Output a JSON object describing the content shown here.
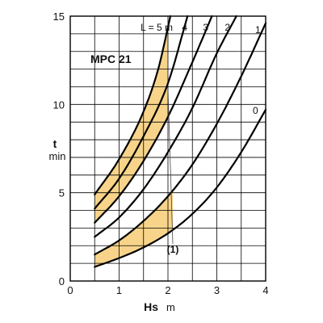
{
  "chart_data": {
    "type": "line",
    "title": "MPC 21",
    "xlabel": "Hs",
    "xunit": "m",
    "ylabel": "t",
    "yunit": "min",
    "xlim": [
      0,
      4
    ],
    "ylim": [
      0,
      15
    ],
    "xticks": [
      "0",
      "1",
      "2",
      "3",
      "4"
    ],
    "yticks": [
      "0",
      "5",
      "10",
      "15"
    ],
    "grid": true,
    "curve_label_prefix": "L = ",
    "curve_label_unit": "m",
    "annotation": "(1)",
    "series": [
      {
        "name": "0",
        "x": [
          0.5,
          1,
          1.5,
          2,
          2.5,
          3,
          3.5,
          4
        ],
        "y": [
          0.8,
          1.3,
          1.9,
          2.7,
          3.8,
          5.3,
          7.3,
          9.7
        ]
      },
      {
        "name": "1",
        "x": [
          0.5,
          1,
          1.5,
          2,
          2.5,
          3,
          3.5,
          4
        ],
        "y": [
          1.5,
          2.3,
          3.4,
          4.8,
          6.6,
          8.9,
          11.6,
          14.6
        ]
      },
      {
        "name": "2",
        "x": [
          0.5,
          1,
          1.5,
          2,
          2.5,
          3,
          3.4
        ],
        "y": [
          2.5,
          3.6,
          5.2,
          7.3,
          9.8,
          12.9,
          15.0
        ]
      },
      {
        "name": "3",
        "x": [
          0.5,
          1,
          1.5,
          2,
          2.5,
          2.9
        ],
        "y": [
          3.3,
          4.8,
          6.8,
          9.3,
          12.4,
          15.0
        ]
      },
      {
        "name": "4",
        "x": [
          0.5,
          1,
          1.5,
          2,
          2.4
        ],
        "y": [
          4.1,
          5.8,
          8.2,
          11.2,
          15.0
        ]
      },
      {
        "name": "5",
        "x": [
          0.5,
          1,
          1.5,
          1.8,
          2.05
        ],
        "y": [
          4.9,
          6.9,
          9.6,
          12.0,
          15.0
        ]
      }
    ],
    "shaded_bands": [
      {
        "lower": "0",
        "upper": "1",
        "x_from": 0.5,
        "x_to": 2.1
      },
      {
        "lower": "3",
        "upper": "5",
        "x_from": 0.5,
        "x_to": 2.0
      }
    ],
    "colors": {
      "band": "#f7d48a",
      "curves": "#000000",
      "grid": "#000000"
    }
  }
}
